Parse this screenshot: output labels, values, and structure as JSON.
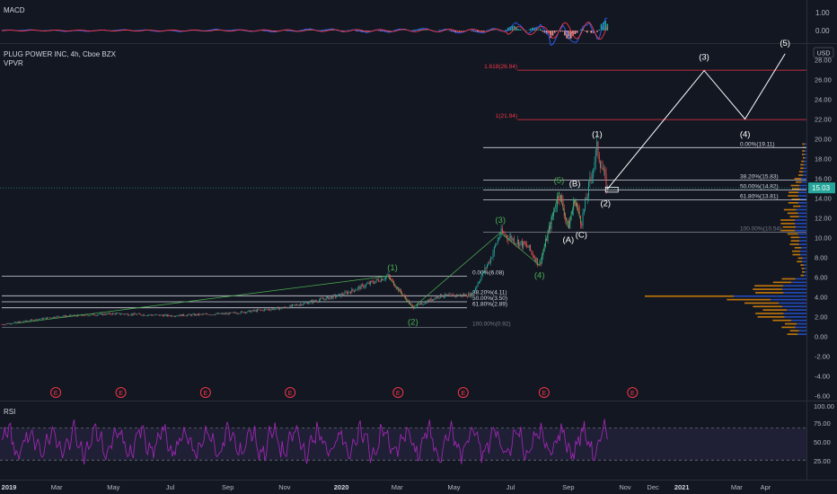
{
  "macd": {
    "label": "MACD",
    "ticks": [
      "1.00",
      "0.00"
    ],
    "colors": {
      "macd": "#2962ff",
      "signal": "#f23645",
      "hist_pos": "#26a69a",
      "hist_neg": "#ef9a9a"
    }
  },
  "price": {
    "title": "PLUG POWER INC, 4h, Cboe BZX",
    "indicator": "VPVR",
    "currency": "USD",
    "current_price": "15.03",
    "y_ticks": [
      "28.00",
      "26.00",
      "24.00",
      "22.00",
      "20.00",
      "18.00",
      "16.00",
      "14.00",
      "12.00",
      "10.00",
      "8.00",
      "6.00",
      "4.00",
      "2.00",
      "0.00",
      "-2.00",
      "-4.00",
      "-6.00"
    ],
    "colors": {
      "up": "#26a69a",
      "down": "#ef5350",
      "fib_line": "#ffffff",
      "ext_line": "#f23645",
      "wave_line": "#ffffff",
      "wave_label_green": "#4caf50",
      "vp_up": "#2962ff",
      "vp_down": "#ff9800"
    }
  },
  "fib_small": {
    "levels": [
      {
        "label": "0.00%(6.08)",
        "price": 6.08
      },
      {
        "label": "38.20%(4.11)",
        "price": 4.11
      },
      {
        "label": "50.00%(3.50)",
        "price": 3.5
      },
      {
        "label": "61.80%(2.89)",
        "price": 2.89
      },
      {
        "label": "100.00%(0.92)",
        "price": 0.92
      }
    ]
  },
  "fib_large": {
    "levels": [
      {
        "label": "0.00%(19.11)",
        "price": 19.11
      },
      {
        "label": "38.20%(15.83)",
        "price": 15.83
      },
      {
        "label": "50.00%(14.82)",
        "price": 14.82
      },
      {
        "label": "61.80%(13.81)",
        "price": 13.81
      },
      {
        "label": "100.00%(10.54)",
        "price": 10.54
      }
    ]
  },
  "extensions": [
    {
      "label": "1.618(26.94)",
      "price": 26.94
    },
    {
      "label": "1(21.94)",
      "price": 21.94
    }
  ],
  "wave_labels": [
    {
      "text": "(1)",
      "date": "2020-02-25",
      "price": 6.7,
      "color": "green"
    },
    {
      "text": "(2)",
      "date": "2020-03-18",
      "price": 1.2,
      "color": "green"
    },
    {
      "text": "(3)",
      "date": "2020-06-20",
      "price": 11.5,
      "color": "green"
    },
    {
      "text": "(4)",
      "date": "2020-08-01",
      "price": 5.9,
      "color": "green"
    },
    {
      "text": "(5)",
      "date": "2020-08-22",
      "price": 15.5,
      "color": "green"
    },
    {
      "text": "(A)",
      "date": "2020-09-01",
      "price": 9.5,
      "color": "white"
    },
    {
      "text": "(B)",
      "date": "2020-09-08",
      "price": 15.2,
      "color": "white"
    },
    {
      "text": "(C)",
      "date": "2020-09-15",
      "price": 10.0,
      "color": "white"
    },
    {
      "text": "(1)",
      "date": "2020-10-02",
      "price": 20.2,
      "color": "white"
    },
    {
      "text": "(2)",
      "date": "2020-10-11",
      "price": 13.2,
      "color": "white"
    },
    {
      "text": "(3)",
      "date": "2021-01-25",
      "price": 28.0,
      "color": "white"
    },
    {
      "text": "(4)",
      "date": "2021-03-10",
      "price": 20.2,
      "color": "white"
    },
    {
      "text": "(5)",
      "date": "2021-04-22",
      "price": 29.4,
      "color": "white"
    }
  ],
  "projection": [
    {
      "date": "2020-10-13",
      "price": 14.9
    },
    {
      "date": "2021-01-25",
      "price": 26.9
    },
    {
      "date": "2021-03-10",
      "price": 22.0
    },
    {
      "date": "2021-04-22",
      "price": 28.6
    }
  ],
  "earnings": {
    "label": "E",
    "dates": [
      "2019-02-28",
      "2019-05-09",
      "2019-08-08",
      "2019-11-07",
      "2020-03-02",
      "2020-05-11",
      "2020-08-06",
      "2020-11-09"
    ]
  },
  "rsi": {
    "label": "RSI",
    "ticks": [
      "100.00",
      "75.00",
      "50.00",
      "25.00"
    ],
    "upper": 70,
    "lower": 30,
    "color": "#9c27b0"
  },
  "x_axis": {
    "ticks": [
      {
        "label": "2019",
        "date": "2019-01-01"
      },
      {
        "label": "Mar",
        "date": "2019-03-01"
      },
      {
        "label": "May",
        "date": "2019-05-01"
      },
      {
        "label": "Jul",
        "date": "2019-07-01"
      },
      {
        "label": "Sep",
        "date": "2019-09-01"
      },
      {
        "label": "Nov",
        "date": "2019-11-01"
      },
      {
        "label": "2020",
        "date": "2020-01-01"
      },
      {
        "label": "Mar",
        "date": "2020-03-01"
      },
      {
        "label": "May",
        "date": "2020-05-01"
      },
      {
        "label": "Jul",
        "date": "2020-07-01"
      },
      {
        "label": "Sep",
        "date": "2020-09-01"
      },
      {
        "label": "Nov",
        "date": "2020-11-01"
      },
      {
        "label": "Dec",
        "date": "2020-12-01"
      },
      {
        "label": "2021",
        "date": "2021-01-01"
      },
      {
        "label": "Mar",
        "date": "2021-03-01"
      },
      {
        "label": "Apr",
        "date": "2021-04-01"
      }
    ]
  },
  "chart_data": {
    "type": "line",
    "series": [
      {
        "name": "",
        "x": [
          "2019-01-01",
          "2019-03-01",
          "2019-05-01",
          "2019-07-01",
          "2019-09-01",
          "2019-11-01",
          "2020-01-01",
          "2020-02-20",
          "2020-03-18",
          "2020-04-15",
          "2020-05-20",
          "2020-06-10",
          "2020-06-20",
          "2020-07-20",
          "2020-08-01",
          "2020-08-22",
          "2020-09-01",
          "2020-09-08",
          "2020-09-15",
          "2020-10-02",
          "2020-10-13"
        ],
        "y": [
          1.2,
          2.0,
          2.3,
          2.1,
          2.3,
          2.9,
          4.2,
          6.1,
          2.9,
          4.1,
          4.2,
          8.0,
          10.5,
          9.0,
          7.2,
          14.6,
          11.0,
          13.9,
          11.5,
          19.1,
          14.8
        ]
      }
    ],
    "xlim": [
      "2019-01-01",
      "2021-05-15"
    ],
    "ylim": [
      -6.5,
      29.5
    ]
  }
}
